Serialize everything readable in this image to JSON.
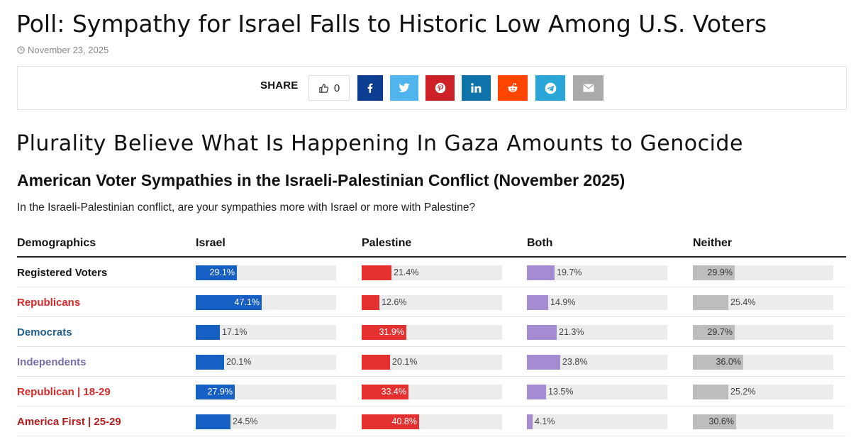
{
  "article": {
    "headline": "Poll: Sympathy for Israel Falls to Historic Low Among U.S. Voters",
    "date": "November 23, 2025",
    "subheadline": "Plurality Believe What Is Happening In Gaza Amounts to Genocide"
  },
  "share": {
    "label": "SHARE",
    "like_count": "0",
    "buttons": [
      {
        "name": "facebook",
        "icon": "facebook-icon",
        "color": "#0d3d91"
      },
      {
        "name": "twitter",
        "icon": "twitter-icon",
        "color": "#4fb5ec"
      },
      {
        "name": "pinterest",
        "icon": "pinterest-icon",
        "color": "#cc2127"
      },
      {
        "name": "linkedin",
        "icon": "linkedin-icon",
        "color": "#0e73a8"
      },
      {
        "name": "reddit",
        "icon": "reddit-icon",
        "color": "#ff4500"
      },
      {
        "name": "telegram",
        "icon": "telegram-icon",
        "color": "#2aa6d9"
      },
      {
        "name": "email",
        "icon": "envelope-icon",
        "color": "#aaaaaa"
      }
    ]
  },
  "chart_data": {
    "type": "table",
    "title": "American Voter Sympathies in the Israeli-Palestinian Conflict (November 2025)",
    "question": "In the Israeli-Palestinian conflict, are your sympathies more with Israel or more with Palestine?",
    "row_header": "Demographics",
    "unit": "%",
    "max": 100,
    "columns": [
      {
        "name": "Israel",
        "color": "#1660c4"
      },
      {
        "name": "Palestine",
        "color": "#e53030"
      },
      {
        "name": "Both",
        "color": "#a58bd1"
      },
      {
        "name": "Neither",
        "color": "#bdbdbd"
      }
    ],
    "rows": [
      {
        "label": "Registered Voters",
        "label_color": "#111111",
        "values": [
          29.1,
          21.4,
          19.7,
          29.9
        ]
      },
      {
        "label": "Republicans",
        "label_color": "#d42a2a",
        "values": [
          47.1,
          12.6,
          14.9,
          25.4
        ]
      },
      {
        "label": "Democrats",
        "label_color": "#1f5f8b",
        "values": [
          17.1,
          31.9,
          21.3,
          29.7
        ]
      },
      {
        "label": "Independents",
        "label_color": "#7b6aa8",
        "values": [
          20.1,
          20.1,
          23.8,
          36.0
        ]
      },
      {
        "label": "Republican | 18-29",
        "label_color": "#d42a2a",
        "values": [
          27.9,
          33.4,
          13.5,
          25.2
        ]
      },
      {
        "label": "America First | 25-29",
        "label_color": "#b51d1d",
        "values": [
          24.5,
          40.8,
          4.1,
          30.6
        ]
      }
    ]
  }
}
